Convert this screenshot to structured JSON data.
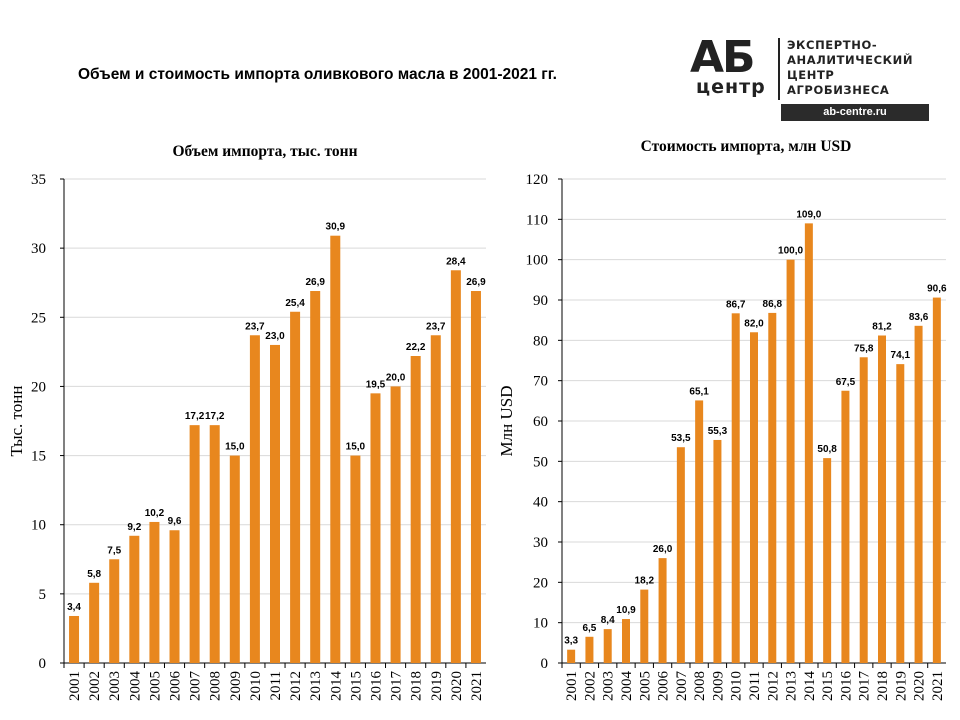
{
  "page": {
    "title": "Объем и стоимость импорта оливкового масла в 2001-2021 гг."
  },
  "logo": {
    "mark": "АБ",
    "mark_sub": "центр",
    "lines": [
      "ЭКСПЕРТНО-",
      "АНАЛИТИЧЕСКИЙ",
      "ЦЕНТР",
      "АГРОБИЗНЕСА"
    ],
    "url": "ab-centre.ru"
  },
  "colors": {
    "bar": "#E8871E",
    "grid": "#D9D9D9",
    "axis": "#000000"
  },
  "chart_data": [
    {
      "type": "bar",
      "title": "Объем импорта, тыс. тонн",
      "xlabel": "",
      "ylabel": "Тыс. тонн",
      "ylim": [
        0,
        35
      ],
      "yticks": [
        0,
        5,
        10,
        15,
        20,
        25,
        30,
        35
      ],
      "grid": true,
      "categories": [
        "2001",
        "2002",
        "2003",
        "2004",
        "2005",
        "2006",
        "2007",
        "2008",
        "2009",
        "2010",
        "2011",
        "2012",
        "2013",
        "2014",
        "2015",
        "2016",
        "2017",
        "2018",
        "2019",
        "2020",
        "2021"
      ],
      "values": [
        3.4,
        5.8,
        7.5,
        9.2,
        10.2,
        9.6,
        17.2,
        17.2,
        15.0,
        23.7,
        23.0,
        25.4,
        26.9,
        30.9,
        15.0,
        19.5,
        20.0,
        22.2,
        23.7,
        28.4,
        26.9
      ],
      "labels": [
        "3,4",
        "5,8",
        "7,5",
        "9,2",
        "10,2",
        "9,6",
        "17,2",
        "17,2",
        "15,0",
        "23,7",
        "23,0",
        "25,4",
        "26,9",
        "30,9",
        "15,0",
        "19,5",
        "20,0",
        "22,2",
        "23,7",
        "28,4",
        "26,9"
      ]
    },
    {
      "type": "bar",
      "title": "Стоимость импорта, млн USD",
      "xlabel": "",
      "ylabel": "Млн USD",
      "ylim": [
        0,
        120
      ],
      "yticks": [
        0,
        10,
        20,
        30,
        40,
        50,
        60,
        70,
        80,
        90,
        100,
        110,
        120
      ],
      "grid": true,
      "categories": [
        "2001",
        "2002",
        "2003",
        "2004",
        "2005",
        "2006",
        "2007",
        "2008",
        "2009",
        "2010",
        "2011",
        "2012",
        "2013",
        "2014",
        "2015",
        "2016",
        "2017",
        "2018",
        "2019",
        "2020",
        "2021"
      ],
      "values": [
        3.3,
        6.5,
        8.4,
        10.9,
        18.2,
        26.0,
        53.5,
        65.1,
        55.3,
        86.7,
        82.0,
        86.8,
        100.0,
        109.0,
        50.8,
        67.5,
        75.8,
        81.2,
        74.1,
        83.6,
        90.6
      ],
      "labels": [
        "3,3",
        "6,5",
        "8,4",
        "10,9",
        "18,2",
        "26,0",
        "53,5",
        "65,1",
        "55,3",
        "86,7",
        "82,0",
        "86,8",
        "100,0",
        "109,0",
        "50,8",
        "67,5",
        "75,8",
        "81,2",
        "74,1",
        "83,6",
        "90,6"
      ]
    }
  ]
}
